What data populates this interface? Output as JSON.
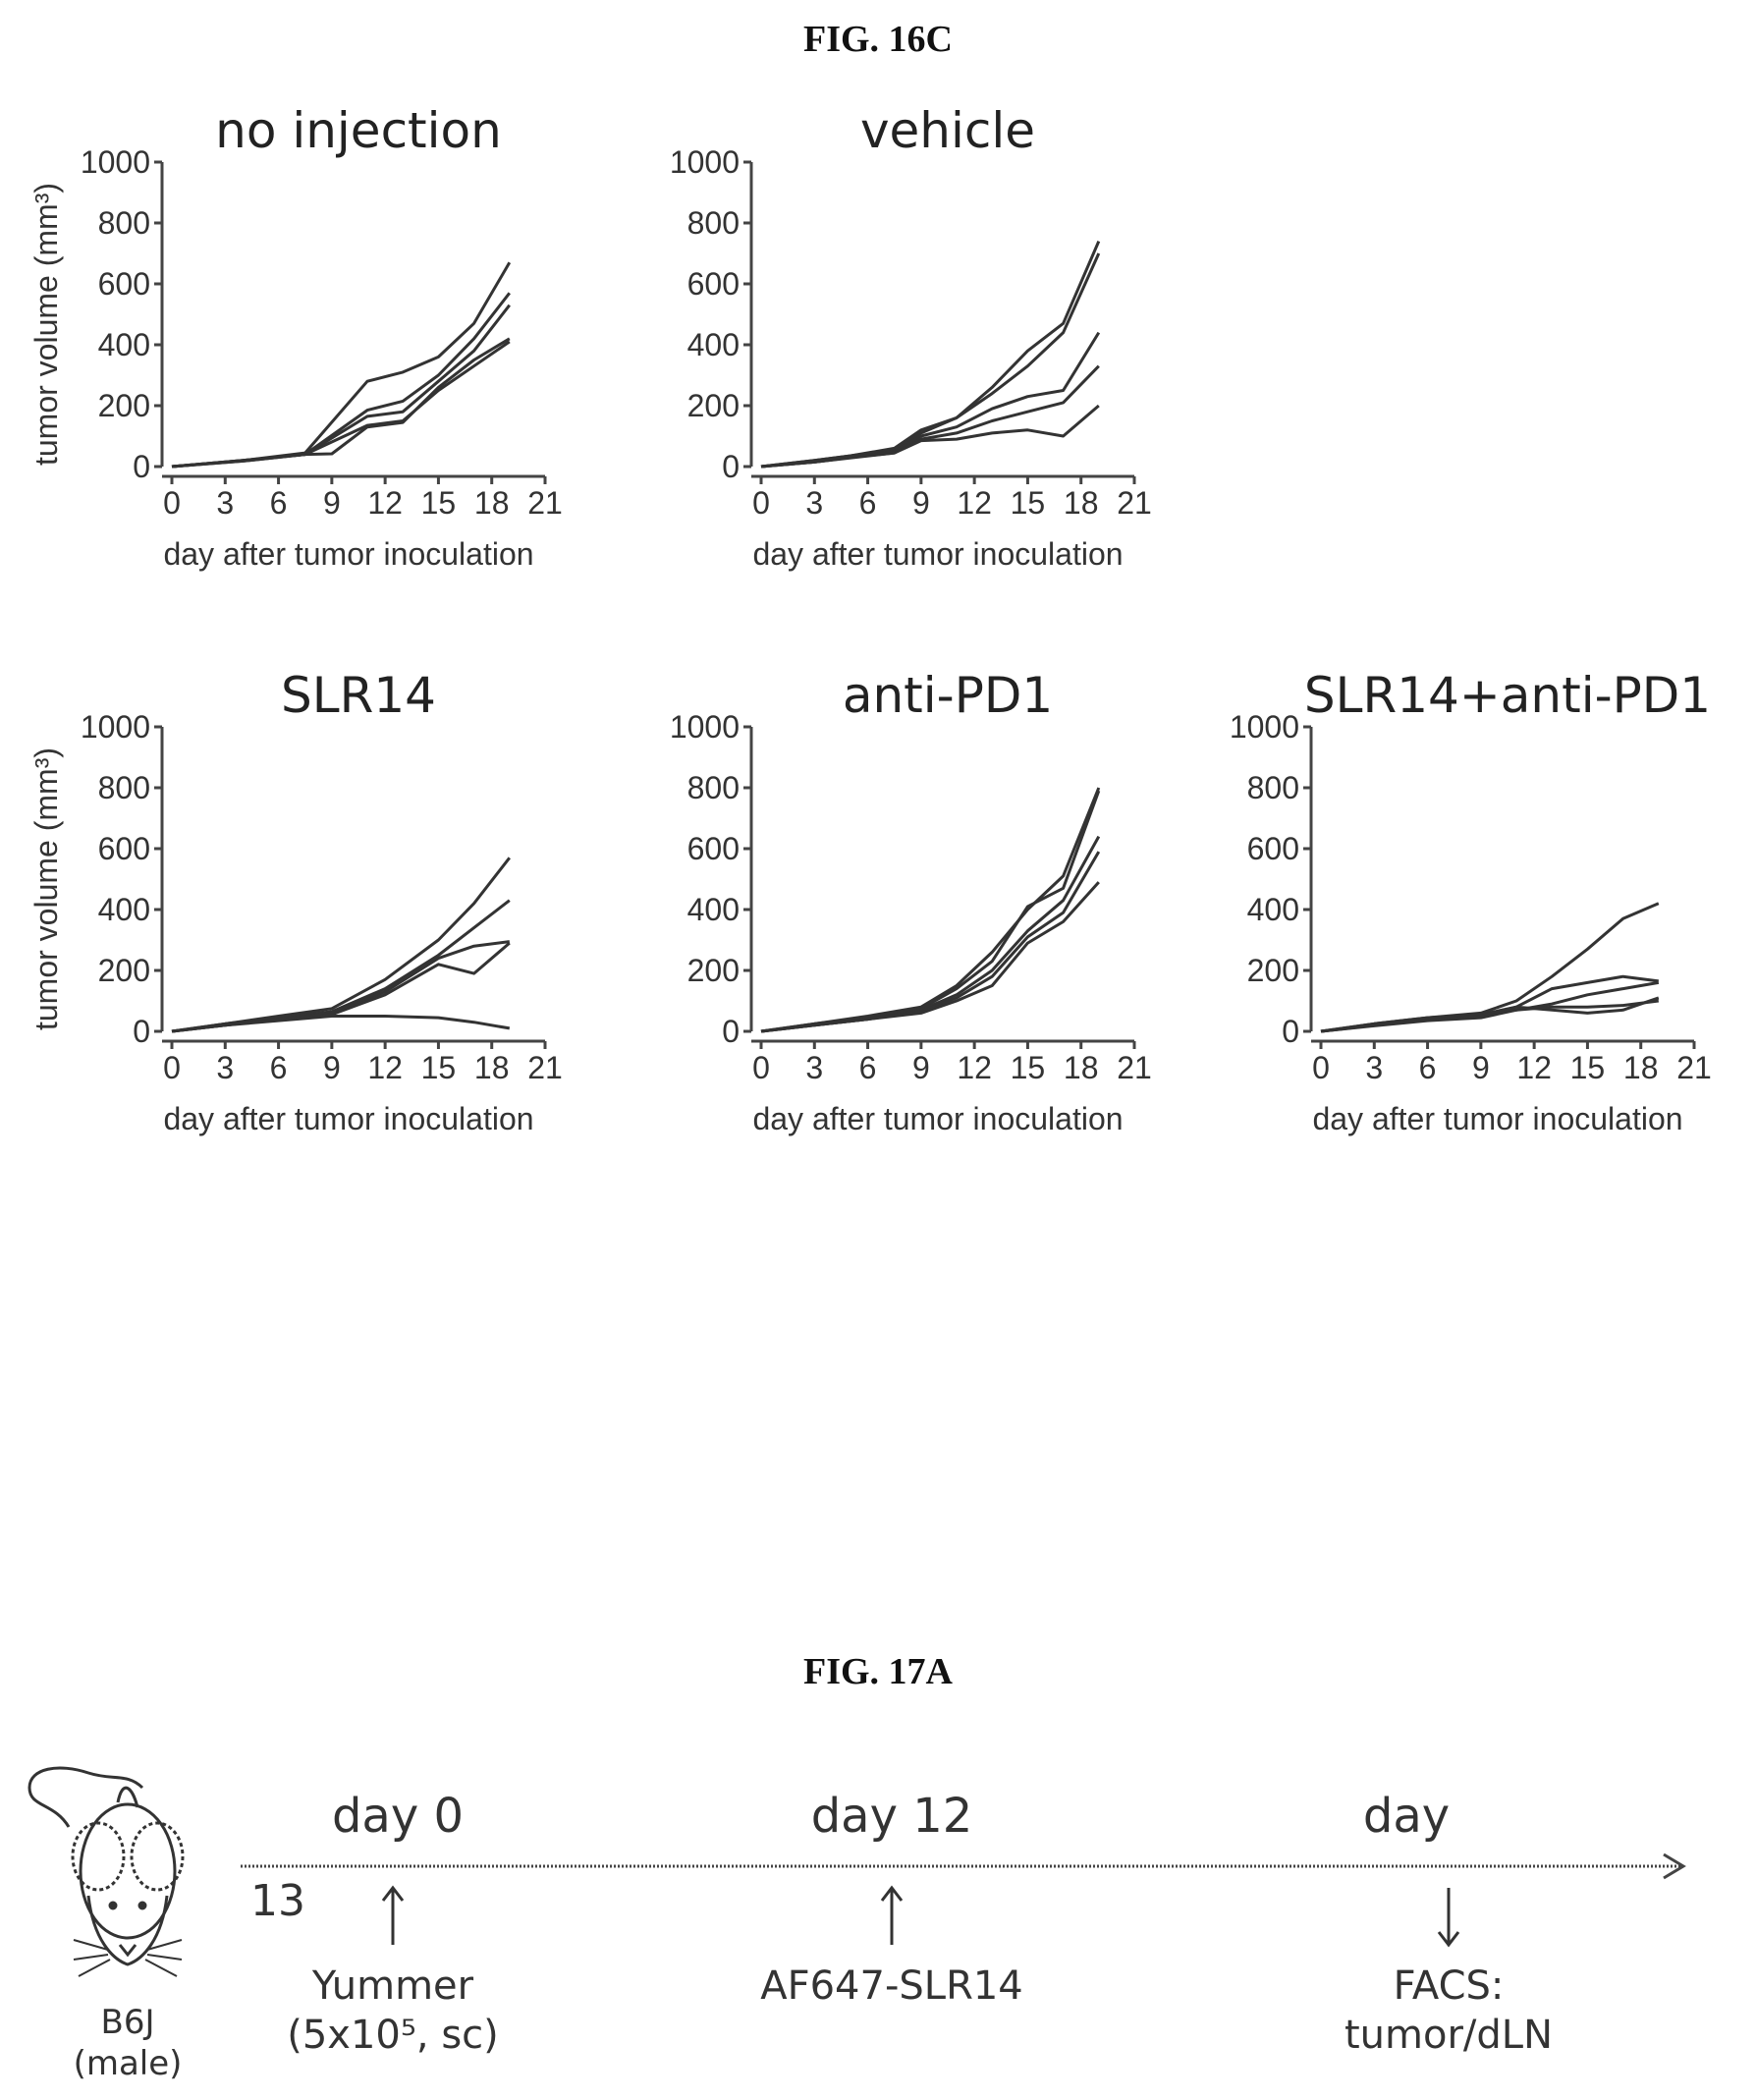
{
  "fig16c": {
    "label": "FIG. 16C"
  },
  "chart_data": [
    {
      "type": "line",
      "title": "no injection",
      "xlabel": "day after tumor inoculation",
      "ylabel": "tumor volume (mm³)",
      "xlim": [
        0,
        21
      ],
      "ylim": [
        0,
        1000
      ],
      "xticks": [
        "0",
        "3",
        "6",
        "9",
        "12",
        "15",
        "18",
        "21"
      ],
      "yticks": [
        "0",
        "200",
        "400",
        "600",
        "800",
        "1000"
      ],
      "series": [
        {
          "x": [
            0,
            4,
            7.5,
            11,
            13,
            15,
            17,
            19
          ],
          "y": [
            0,
            20,
            45,
            280,
            310,
            360,
            470,
            670
          ]
        },
        {
          "x": [
            0,
            4,
            7.5,
            11,
            13,
            15,
            17,
            19
          ],
          "y": [
            0,
            20,
            40,
            185,
            215,
            300,
            420,
            570
          ]
        },
        {
          "x": [
            0,
            4,
            7.5,
            11,
            13,
            15,
            17,
            19
          ],
          "y": [
            0,
            20,
            40,
            165,
            180,
            280,
            380,
            530
          ]
        },
        {
          "x": [
            0,
            4,
            7.5,
            11,
            13,
            15,
            17,
            19
          ],
          "y": [
            0,
            18,
            40,
            135,
            150,
            250,
            330,
            410
          ]
        },
        {
          "x": [
            0,
            4,
            7.5,
            9,
            11,
            13,
            15,
            17,
            19
          ],
          "y": [
            0,
            18,
            40,
            42,
            130,
            145,
            260,
            350,
            420
          ]
        }
      ]
    },
    {
      "type": "line",
      "title": "vehicle",
      "xlabel": "day after tumor inoculation",
      "ylabel": "",
      "xlim": [
        0,
        21
      ],
      "ylim": [
        0,
        1000
      ],
      "xticks": [
        "0",
        "3",
        "6",
        "9",
        "12",
        "15",
        "18",
        "21"
      ],
      "yticks": [
        "0",
        "200",
        "400",
        "600",
        "800",
        "1000"
      ],
      "series": [
        {
          "x": [
            0,
            3,
            5,
            7.5,
            9,
            11,
            13,
            15,
            17,
            19
          ],
          "y": [
            0,
            20,
            35,
            60,
            120,
            160,
            260,
            380,
            470,
            740
          ]
        },
        {
          "x": [
            0,
            3,
            5,
            7.5,
            9,
            11,
            13,
            15,
            17,
            19
          ],
          "y": [
            0,
            20,
            35,
            55,
            110,
            160,
            240,
            330,
            440,
            700
          ]
        },
        {
          "x": [
            0,
            3,
            5,
            7.5,
            9,
            11,
            13,
            15,
            17,
            19
          ],
          "y": [
            0,
            15,
            30,
            50,
            100,
            130,
            190,
            230,
            250,
            440
          ]
        },
        {
          "x": [
            0,
            3,
            5,
            7.5,
            9,
            11,
            13,
            15,
            17,
            19
          ],
          "y": [
            0,
            15,
            30,
            45,
            90,
            110,
            150,
            180,
            210,
            330
          ]
        },
        {
          "x": [
            0,
            3,
            5,
            7.5,
            9,
            11,
            13,
            15,
            17,
            19
          ],
          "y": [
            0,
            15,
            28,
            45,
            85,
            90,
            110,
            120,
            100,
            200
          ]
        }
      ]
    },
    {
      "type": "line",
      "title": "SLR14",
      "xlabel": "day after tumor inoculation",
      "ylabel": "tumor volume (mm³)",
      "xlim": [
        0,
        21
      ],
      "ylim": [
        0,
        1000
      ],
      "xticks": [
        "0",
        "3",
        "6",
        "9",
        "12",
        "15",
        "18",
        "21"
      ],
      "yticks": [
        "0",
        "200",
        "400",
        "600",
        "800",
        "1000"
      ],
      "series": [
        {
          "x": [
            0,
            3,
            6,
            9,
            12,
            15,
            17,
            19
          ],
          "y": [
            0,
            25,
            50,
            75,
            170,
            300,
            420,
            570
          ]
        },
        {
          "x": [
            0,
            3,
            6,
            9,
            12,
            15,
            17,
            19
          ],
          "y": [
            0,
            25,
            45,
            65,
            140,
            250,
            340,
            430
          ]
        },
        {
          "x": [
            0,
            3,
            6,
            9,
            12,
            15,
            17,
            19
          ],
          "y": [
            0,
            20,
            40,
            60,
            130,
            240,
            280,
            295
          ]
        },
        {
          "x": [
            0,
            3,
            6,
            9,
            12,
            15,
            17,
            19
          ],
          "y": [
            0,
            20,
            40,
            55,
            120,
            220,
            190,
            290
          ]
        },
        {
          "x": [
            0,
            3,
            6,
            9,
            12,
            15,
            17,
            19
          ],
          "y": [
            0,
            20,
            35,
            50,
            50,
            45,
            30,
            10
          ]
        }
      ]
    },
    {
      "type": "line",
      "title": "anti-PD1",
      "xlabel": "day after tumor inoculation",
      "ylabel": "",
      "xlim": [
        0,
        21
      ],
      "ylim": [
        0,
        1000
      ],
      "xticks": [
        "0",
        "3",
        "6",
        "9",
        "12",
        "15",
        "18",
        "21"
      ],
      "yticks": [
        "0",
        "200",
        "400",
        "600",
        "800",
        "1000"
      ],
      "series": [
        {
          "x": [
            0,
            3,
            6,
            9,
            11,
            13,
            15,
            17,
            19
          ],
          "y": [
            0,
            25,
            50,
            80,
            150,
            260,
            400,
            510,
            800
          ]
        },
        {
          "x": [
            0,
            3,
            6,
            9,
            11,
            13,
            15,
            17,
            19
          ],
          "y": [
            0,
            25,
            45,
            75,
            140,
            230,
            410,
            470,
            790
          ]
        },
        {
          "x": [
            0,
            3,
            6,
            9,
            11,
            13,
            15,
            17,
            19
          ],
          "y": [
            0,
            20,
            40,
            70,
            120,
            200,
            330,
            430,
            640
          ]
        },
        {
          "x": [
            0,
            3,
            6,
            9,
            11,
            13,
            15,
            17,
            19
          ],
          "y": [
            0,
            20,
            40,
            65,
            110,
            180,
            310,
            390,
            590
          ]
        },
        {
          "x": [
            0,
            3,
            6,
            9,
            11,
            13,
            15,
            17,
            19
          ],
          "y": [
            0,
            20,
            40,
            60,
            100,
            150,
            290,
            360,
            490
          ]
        }
      ]
    },
    {
      "type": "line",
      "title": "SLR14+anti-PD1",
      "xlabel": "day after tumor inoculation",
      "ylabel": "",
      "xlim": [
        0,
        21
      ],
      "ylim": [
        0,
        1000
      ],
      "xticks": [
        "0",
        "3",
        "6",
        "9",
        "12",
        "15",
        "18",
        "21"
      ],
      "yticks": [
        "0",
        "200",
        "400",
        "600",
        "800",
        "1000"
      ],
      "series": [
        {
          "x": [
            0,
            3,
            6,
            9,
            11,
            13,
            15,
            17,
            19
          ],
          "y": [
            0,
            25,
            45,
            60,
            100,
            180,
            270,
            370,
            420
          ]
        },
        {
          "x": [
            0,
            3,
            6,
            9,
            11,
            13,
            15,
            17,
            19
          ],
          "y": [
            0,
            25,
            45,
            55,
            80,
            140,
            160,
            180,
            165
          ]
        },
        {
          "x": [
            0,
            3,
            6,
            9,
            11,
            13,
            15,
            17,
            19
          ],
          "y": [
            0,
            20,
            40,
            55,
            70,
            90,
            120,
            140,
            160
          ]
        },
        {
          "x": [
            0,
            3,
            6,
            9,
            11,
            13,
            15,
            17,
            19
          ],
          "y": [
            0,
            20,
            40,
            50,
            80,
            70,
            60,
            70,
            110
          ]
        },
        {
          "x": [
            0,
            3,
            6,
            9,
            11,
            13,
            15,
            17,
            19
          ],
          "y": [
            0,
            18,
            35,
            45,
            70,
            80,
            80,
            85,
            100
          ]
        }
      ]
    }
  ],
  "fig17a": {
    "label": "FIG. 17A",
    "mouse_label_line1": "B6J",
    "mouse_label_line2": "(male)",
    "timepoints": [
      {
        "day": "day 0",
        "label_line1": "Yummer",
        "label_line2": "(5x10⁵, sc)",
        "arrow": "up"
      },
      {
        "day": "day 12",
        "label_line1": "AF647-SLR14",
        "label_line2": "",
        "arrow": "up"
      },
      {
        "day": "day",
        "label_line1": "FACS:",
        "label_line2": "tumor/dLN",
        "arrow": "down"
      }
    ],
    "stray_label": "13"
  }
}
